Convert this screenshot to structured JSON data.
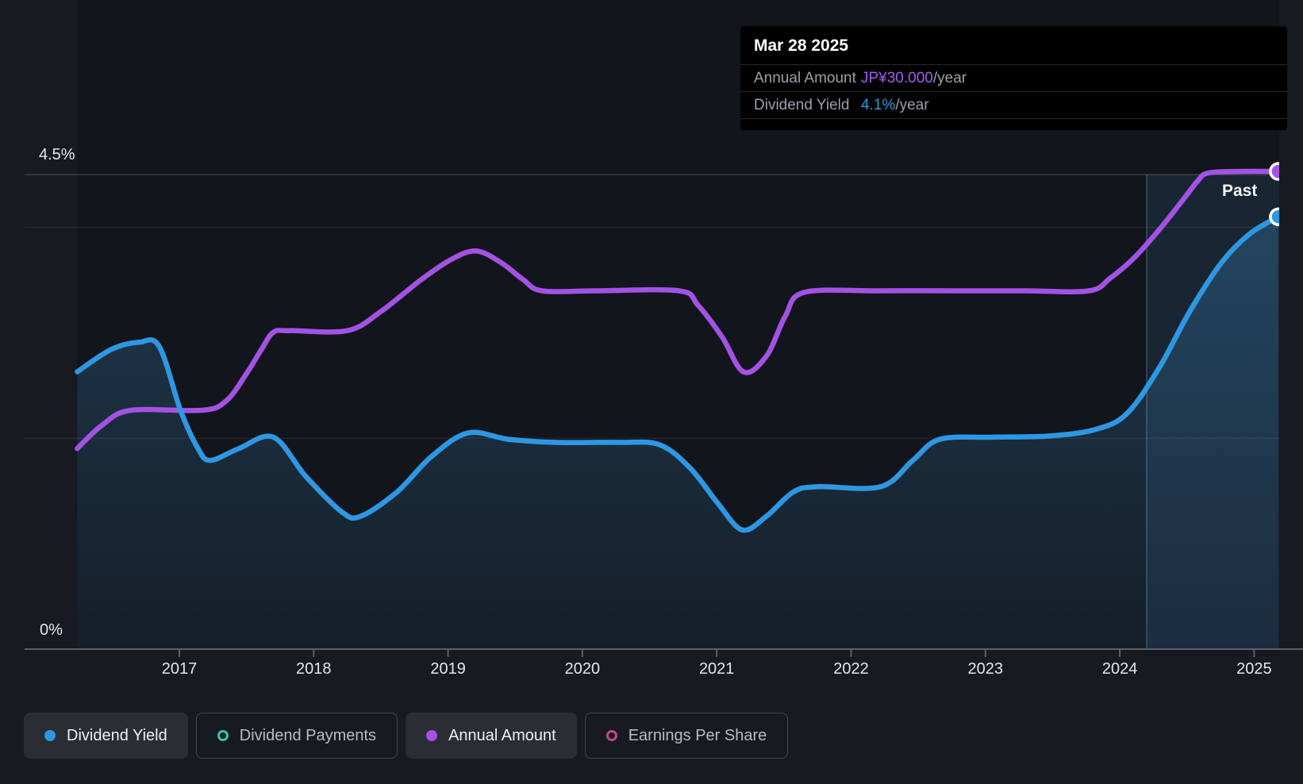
{
  "tooltip": {
    "date": "Mar 28 2025",
    "rows": [
      {
        "label": "Annual Amount",
        "value": "JP¥30.000",
        "suffix": "/year",
        "color": "#a45cf0"
      },
      {
        "label": "Dividend Yield",
        "value": "4.1%",
        "suffix": "/year",
        "color": "#2e9ae4"
      }
    ]
  },
  "y_axis": {
    "top_label": "4.5%",
    "bottom_label": "0%"
  },
  "x_axis": {
    "ticks": [
      "2017",
      "2018",
      "2019",
      "2020",
      "2021",
      "2022",
      "2023",
      "2024",
      "2025"
    ]
  },
  "past_label": "Past",
  "legend": [
    {
      "label": "Dividend Yield",
      "color": "#2e97e2",
      "filled": true,
      "active": true
    },
    {
      "label": "Dividend Payments",
      "color": "#31c7b4",
      "filled": false,
      "active": false
    },
    {
      "label": "Annual Amount",
      "color": "#a352e4",
      "filled": true,
      "active": true
    },
    {
      "label": "Earnings Per Share",
      "color": "#c4498a",
      "filled": false,
      "active": false
    }
  ],
  "chart_data": {
    "type": "line",
    "title": "Dividend history",
    "x_range": [
      2016.24,
      2025.18
    ],
    "yield_axis": {
      "min": 0,
      "top_gridline": 4.5,
      "unit": "%"
    },
    "amount_axis": {
      "min": 0,
      "max": 30,
      "unit": "JP¥"
    },
    "gridlines_pct": [
      4.5,
      4.0,
      2.0
    ],
    "past_window_start": 2024.2,
    "series": [
      {
        "name": "Dividend Yield",
        "unit": "%",
        "color": "#2e97e2",
        "area": true,
        "points": [
          [
            2016.24,
            2.63
          ],
          [
            2016.49,
            2.84
          ],
          [
            2016.7,
            2.91
          ],
          [
            2016.85,
            2.87
          ],
          [
            2017.01,
            2.26
          ],
          [
            2017.14,
            1.9
          ],
          [
            2017.23,
            1.79
          ],
          [
            2017.44,
            1.9
          ],
          [
            2017.7,
            2.01
          ],
          [
            2017.94,
            1.64
          ],
          [
            2018.21,
            1.3
          ],
          [
            2018.35,
            1.26
          ],
          [
            2018.62,
            1.49
          ],
          [
            2018.88,
            1.83
          ],
          [
            2019.15,
            2.05
          ],
          [
            2019.45,
            1.99
          ],
          [
            2019.8,
            1.96
          ],
          [
            2020.27,
            1.96
          ],
          [
            2020.57,
            1.94
          ],
          [
            2020.8,
            1.72
          ],
          [
            2021.01,
            1.38
          ],
          [
            2021.19,
            1.13
          ],
          [
            2021.37,
            1.26
          ],
          [
            2021.57,
            1.49
          ],
          [
            2021.75,
            1.54
          ],
          [
            2022.22,
            1.54
          ],
          [
            2022.46,
            1.79
          ],
          [
            2022.66,
            1.99
          ],
          [
            2023.05,
            2.01
          ],
          [
            2023.46,
            2.02
          ],
          [
            2023.81,
            2.08
          ],
          [
            2024.05,
            2.23
          ],
          [
            2024.29,
            2.66
          ],
          [
            2024.52,
            3.2
          ],
          [
            2024.76,
            3.67
          ],
          [
            2024.97,
            3.94
          ],
          [
            2025.18,
            4.1
          ]
        ]
      },
      {
        "name": "Annual Amount",
        "unit": "JP¥",
        "color": "#a352e4",
        "area": false,
        "points": [
          [
            2016.24,
            12.6
          ],
          [
            2016.43,
            14.1
          ],
          [
            2016.64,
            15.0
          ],
          [
            2017.17,
            15.0
          ],
          [
            2017.35,
            15.6
          ],
          [
            2017.5,
            17.3
          ],
          [
            2017.61,
            18.8
          ],
          [
            2017.7,
            19.9
          ],
          [
            2017.82,
            20.0
          ],
          [
            2018.25,
            20.0
          ],
          [
            2018.5,
            21.2
          ],
          [
            2018.8,
            23.2
          ],
          [
            2019.03,
            24.5
          ],
          [
            2019.21,
            25.0
          ],
          [
            2019.39,
            24.3
          ],
          [
            2019.56,
            23.2
          ],
          [
            2019.7,
            22.5
          ],
          [
            2020.1,
            22.5
          ],
          [
            2020.72,
            22.5
          ],
          [
            2020.86,
            21.6
          ],
          [
            2021.04,
            19.6
          ],
          [
            2021.2,
            17.4
          ],
          [
            2021.37,
            18.4
          ],
          [
            2021.51,
            20.9
          ],
          [
            2021.65,
            22.4
          ],
          [
            2022.2,
            22.5
          ],
          [
            2022.8,
            22.5
          ],
          [
            2023.3,
            22.5
          ],
          [
            2023.77,
            22.5
          ],
          [
            2023.93,
            23.3
          ],
          [
            2024.11,
            24.6
          ],
          [
            2024.29,
            26.3
          ],
          [
            2024.46,
            28.1
          ],
          [
            2024.58,
            29.4
          ],
          [
            2024.66,
            29.9
          ],
          [
            2024.9,
            30.0
          ],
          [
            2025.18,
            30.0
          ]
        ]
      }
    ]
  }
}
